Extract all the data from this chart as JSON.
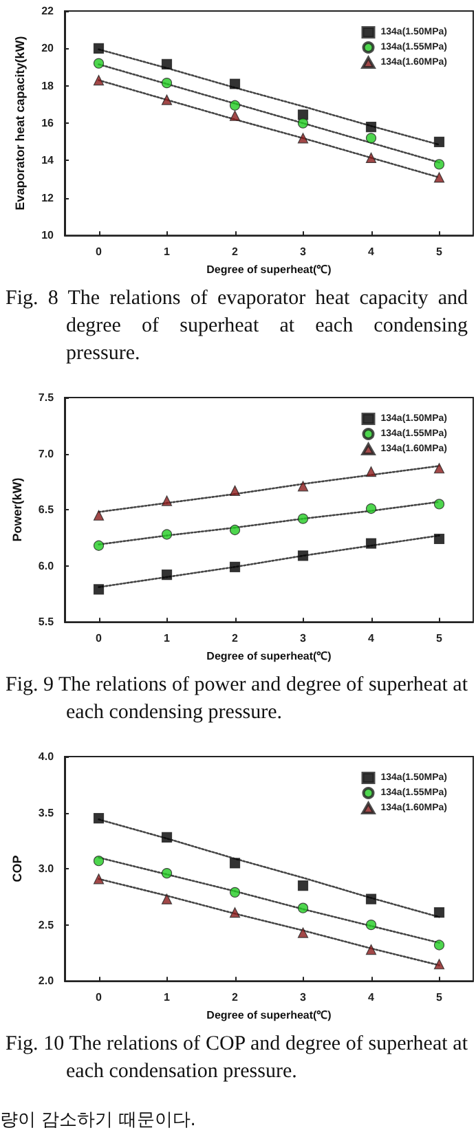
{
  "chart_data": [
    {
      "type": "scatter",
      "xlabel": "Degree of superheat(℃)",
      "ylabel": "Evaporator heat capacity(kW)",
      "x": [
        0,
        1,
        2,
        3,
        4,
        5
      ],
      "xlim": [
        -0.5,
        5.5
      ],
      "xticks": [
        0,
        1,
        2,
        3,
        4,
        5
      ],
      "ylim": [
        10,
        22
      ],
      "yticks": [
        10,
        12,
        14,
        16,
        18,
        20,
        22
      ],
      "grid": false,
      "legend": "top right",
      "series": [
        {
          "name": "134a(1.50MPa)",
          "color": "#000000",
          "marker": "square",
          "values": [
            20.0,
            19.15,
            18.1,
            16.45,
            15.8,
            15.0
          ]
        },
        {
          "name": "134a(1.55MPa)",
          "color": "#22cc22",
          "marker": "circle",
          "values": [
            19.2,
            18.15,
            16.95,
            16.0,
            15.2,
            13.8
          ]
        },
        {
          "name": "134a(1.60MPa)",
          "color": "#8b1a1a",
          "marker": "triangle",
          "values": [
            18.3,
            17.25,
            16.4,
            15.2,
            14.15,
            13.1
          ]
        },
        {
          "type": "line",
          "color": "#444444",
          "marker": "none",
          "line_style": "dotted",
          "values": [
            19.95,
            18.95,
            17.9,
            16.9,
            15.85,
            14.85
          ]
        },
        {
          "type": "line",
          "color": "#444444",
          "marker": "none",
          "line_style": "dotted",
          "values": [
            19.15,
            18.1,
            17.05,
            16.0,
            14.95,
            13.9
          ]
        },
        {
          "type": "line",
          "color": "#444444",
          "marker": "none",
          "line_style": "dotted",
          "values": [
            18.3,
            17.25,
            16.2,
            15.2,
            14.15,
            13.1
          ]
        }
      ],
      "annotations": [
        "Fig. 8  The relations of evaporator heat capacity and degree of superheat at each condensing pressure."
      ]
    },
    {
      "type": "scatter",
      "xlabel": "Degree of superheat(℃)",
      "ylabel": "Power(kW)",
      "x": [
        0,
        1,
        2,
        3,
        4,
        5
      ],
      "xlim": [
        -0.5,
        5.5
      ],
      "xticks": [
        0,
        1,
        2,
        3,
        4,
        5
      ],
      "ylim": [
        5.5,
        7.5
      ],
      "yticks": [
        5.5,
        {
          "value": 6,
          "label": "6.0"
        },
        6.5,
        {
          "value": 7,
          "label": "7.0"
        },
        7.5
      ],
      "grid": false,
      "legend": "top right",
      "series": [
        {
          "name": "134a(1.50MPa)",
          "color": "#000000",
          "marker": "square",
          "values": [
            5.79,
            5.92,
            5.99,
            6.09,
            6.2,
            6.24
          ]
        },
        {
          "name": "134a(1.55MPa)",
          "color": "#22cc22",
          "marker": "circle",
          "values": [
            6.18,
            6.28,
            6.32,
            6.42,
            6.51,
            6.55
          ]
        },
        {
          "name": "134a(1.60MPa)",
          "color": "#8b1a1a",
          "marker": "triangle",
          "values": [
            6.45,
            6.58,
            6.67,
            6.71,
            6.84,
            6.87
          ]
        },
        {
          "type": "line",
          "color": "#444444",
          "marker": "none",
          "line_style": "dotted",
          "values": [
            5.81,
            5.9,
            5.99,
            6.09,
            6.18,
            6.27
          ]
        },
        {
          "type": "line",
          "color": "#444444",
          "marker": "none",
          "line_style": "dotted",
          "values": [
            6.19,
            6.27,
            6.34,
            6.42,
            6.49,
            6.57
          ]
        },
        {
          "type": "line",
          "color": "#444444",
          "marker": "none",
          "line_style": "dotted",
          "values": [
            6.48,
            6.56,
            6.64,
            6.73,
            6.81,
            6.89
          ]
        }
      ],
      "annotations": [
        "Fig. 9  The relations of power and degree of superheat at each condensing pressure."
      ]
    },
    {
      "type": "scatter",
      "xlabel": "Degree of superheat(℃)",
      "ylabel": "COP",
      "x": [
        0,
        1,
        2,
        3,
        4,
        5
      ],
      "xlim": [
        -0.5,
        5.5
      ],
      "xticks": [
        0,
        1,
        2,
        3,
        4,
        5
      ],
      "ylim": [
        2,
        4
      ],
      "yticks": [
        {
          "value": 2,
          "label": "2.0"
        },
        2.5,
        {
          "value": 3,
          "label": "3.0"
        },
        3.5,
        {
          "value": 4,
          "label": "4.0"
        }
      ],
      "grid": false,
      "legend": "top right",
      "series": [
        {
          "name": "134a(1.50MPa)",
          "color": "#000000",
          "marker": "square",
          "values": [
            3.45,
            3.28,
            3.05,
            2.85,
            2.73,
            2.61
          ]
        },
        {
          "name": "134a(1.55MPa)",
          "color": "#22cc22",
          "marker": "circle",
          "values": [
            3.07,
            2.96,
            2.79,
            2.65,
            2.5,
            2.32
          ]
        },
        {
          "name": "134a(1.60MPa)",
          "color": "#8b1a1a",
          "marker": "triangle",
          "values": [
            2.91,
            2.73,
            2.61,
            2.43,
            2.28,
            2.15
          ]
        },
        {
          "type": "line",
          "color": "#444444",
          "marker": "none",
          "line_style": "dotted",
          "values": [
            3.44,
            3.27,
            3.09,
            2.92,
            2.74,
            2.57
          ]
        },
        {
          "type": "line",
          "color": "#444444",
          "marker": "none",
          "line_style": "dotted",
          "values": [
            3.1,
            2.95,
            2.8,
            2.64,
            2.49,
            2.34
          ]
        },
        {
          "type": "line",
          "color": "#444444",
          "marker": "none",
          "line_style": "dotted",
          "values": [
            2.91,
            2.76,
            2.6,
            2.45,
            2.29,
            2.14
          ]
        }
      ],
      "annotations": [
        "Fig. 10 The relations of COP and degree of superheat at each condensation pressure.",
        "량이 감소하기 때문이다."
      ]
    }
  ]
}
